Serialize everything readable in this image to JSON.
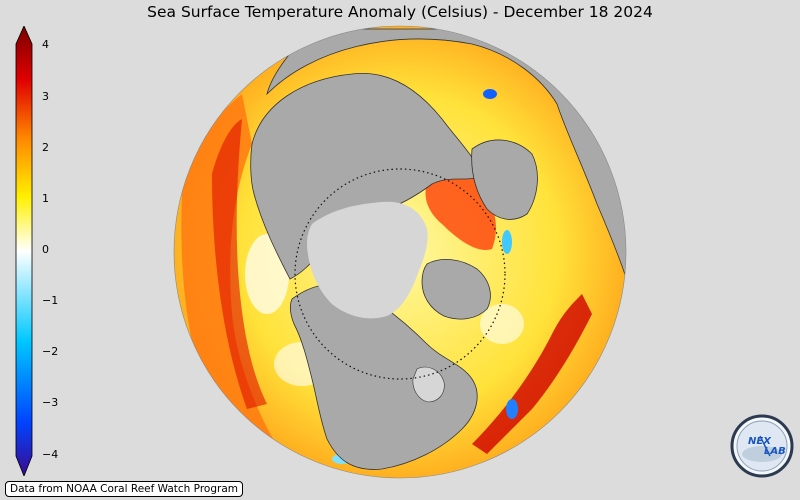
{
  "title": "Sea Surface Temperature Anomaly (Celsius) - December 18 2024",
  "colorbar": {
    "ticks": [
      "4",
      "3",
      "2",
      "1",
      "0",
      "−1",
      "−2",
      "−3",
      "−4"
    ],
    "colors": [
      "#3b0a8f",
      "#0044ff",
      "#00c8ff",
      "#ffffff",
      "#fff000",
      "#ff8800",
      "#e00000",
      "#7a0000"
    ]
  },
  "credit": "Data from NOAA Coral Reef Watch Program",
  "logo": {
    "text": "NEX LAB",
    "icon": "nexlab-logo-icon"
  },
  "map": {
    "projection": "orthographic",
    "center": "North Pole",
    "land_color": "#a9a9a9",
    "ice_color": "#d6d6d6"
  }
}
